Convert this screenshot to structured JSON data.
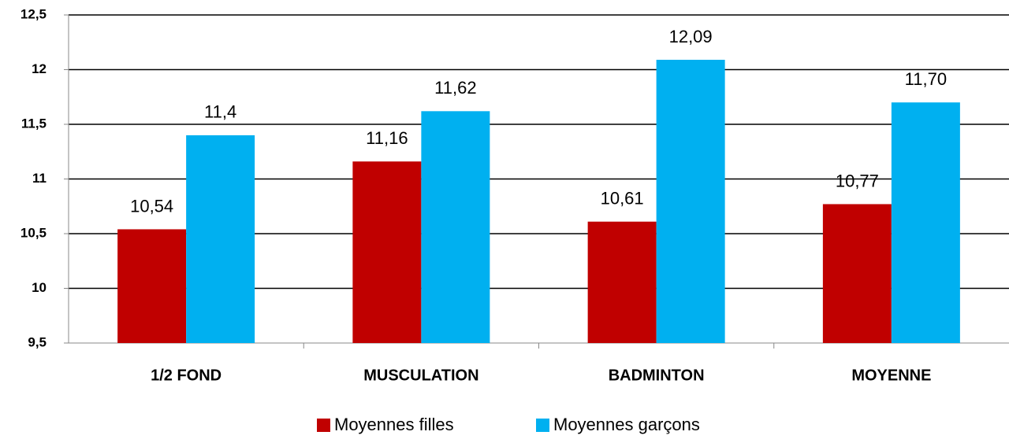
{
  "chart_data": {
    "type": "bar",
    "categories": [
      "1/2 FOND",
      "MUSCULATION",
      "BADMINTON",
      "MOYENNE"
    ],
    "series": [
      {
        "name": "Moyennes filles",
        "color": "#c00000",
        "values": [
          10.54,
          11.16,
          10.61,
          10.77
        ],
        "value_labels": [
          "10,54",
          "11,16",
          "10,61",
          "10,77"
        ]
      },
      {
        "name": "Moyennes garçons",
        "color": "#00b0f0",
        "values": [
          11.4,
          11.62,
          12.09,
          11.7
        ],
        "value_labels": [
          "11,4",
          "11,62",
          "12,09",
          "11,70"
        ]
      }
    ],
    "ylim": [
      9.5,
      12.5
    ],
    "yticks": [
      {
        "value": 9.5,
        "label": "9,5"
      },
      10,
      {
        "value": 10.5,
        "label": "10,5"
      },
      11,
      {
        "value": 11.5,
        "label": "11,5"
      },
      12,
      {
        "value": 12.5,
        "label": "12,5"
      }
    ],
    "grid": true
  }
}
